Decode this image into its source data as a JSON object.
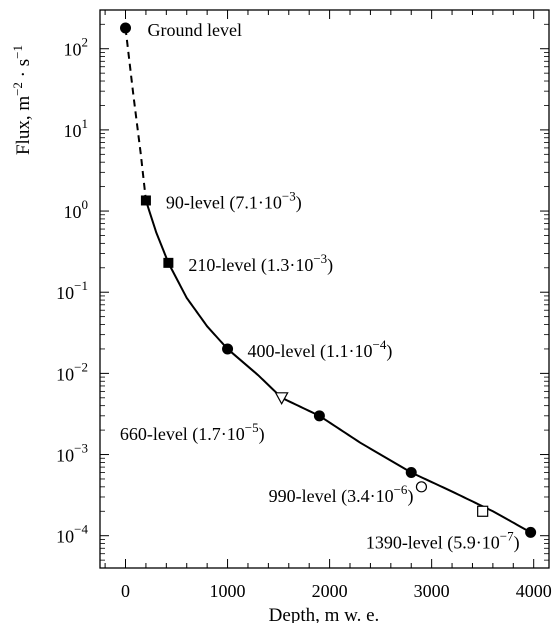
{
  "chart_data": {
    "type": "scatter",
    "title": "",
    "xlabel": "Depth, m w. e.",
    "ylabel": "Flux, m−2 · s−1",
    "xlim": [
      -250,
      4150
    ],
    "ylim": [
      4e-05,
      300
    ],
    "yscale": "log",
    "x_ticks": [
      0,
      1000,
      2000,
      3000,
      4000
    ],
    "x_tick_labels": [
      "0",
      "1000",
      "2000",
      "3000",
      "4000"
    ],
    "y_ticks": [
      0.0001,
      0.001,
      0.01,
      0.1,
      1,
      10,
      100
    ],
    "y_tick_labels": [
      {
        "base": "10",
        "exp": "−4"
      },
      {
        "base": "10",
        "exp": "−3"
      },
      {
        "base": "10",
        "exp": "−2"
      },
      {
        "base": "10",
        "exp": "−1"
      },
      {
        "base": "10",
        "exp": "0"
      },
      {
        "base": "10",
        "exp": "1"
      },
      {
        "base": "10",
        "exp": "2"
      }
    ],
    "grid": false,
    "points": [
      {
        "x": 0,
        "y": 180,
        "marker": "circle-filled",
        "label": "Ground level"
      },
      {
        "x": 200,
        "y": 1.35,
        "marker": "square-filled",
        "label": "90-level (7.1·10−3)"
      },
      {
        "x": 420,
        "y": 0.23,
        "marker": "square-filled",
        "label": "210-level (1.3·10−3)"
      },
      {
        "x": 1000,
        "y": 0.02,
        "marker": "circle-filled",
        "label": "400-level (1.1·10−4)"
      },
      {
        "x": 1530,
        "y": 0.005,
        "marker": "triangle-down-open",
        "label": "660-level (1.7·10−5)"
      },
      {
        "x": 1900,
        "y": 0.003,
        "marker": "circle-filled",
        "label": ""
      },
      {
        "x": 2800,
        "y": 0.0006,
        "marker": "circle-filled",
        "label": ""
      },
      {
        "x": 2900,
        "y": 0.0004,
        "marker": "circle-open",
        "label": "990-level (3.4·10−6)"
      },
      {
        "x": 3500,
        "y": 0.0002,
        "marker": "square-open",
        "label": ""
      },
      {
        "x": 3970,
        "y": 0.00011,
        "marker": "circle-filled",
        "label": "1390-level (5.9·10−7)"
      }
    ],
    "annotations": [
      {
        "text": "Ground level",
        "ref_point": 0
      },
      {
        "base": "90-level (7.1·10",
        "exp": "−3",
        "tail": ")",
        "ref_point": 1
      },
      {
        "base": "210-level (1.3·10",
        "exp": "−3",
        "tail": ")",
        "ref_point": 2
      },
      {
        "base": "400-level (1.1·10",
        "exp": "−4",
        "tail": ")",
        "ref_point": 3
      },
      {
        "base": "660-level (1.7·10",
        "exp": "−5",
        "tail": ")",
        "ref_point": 4
      },
      {
        "base": "990-level (3.4·10",
        "exp": "−6",
        "tail": ")",
        "ref_point": 7
      },
      {
        "base": "1390-level (5.9·10",
        "exp": "−7",
        "tail": ")",
        "ref_point": 9
      }
    ],
    "curve_dashed": [
      [
        0,
        180
      ],
      [
        80,
        25
      ],
      [
        150,
        5
      ],
      [
        200,
        1.35
      ]
    ],
    "curve_solid": [
      [
        200,
        1.35
      ],
      [
        300,
        0.55
      ],
      [
        420,
        0.23
      ],
      [
        600,
        0.085
      ],
      [
        800,
        0.038
      ],
      [
        1000,
        0.02
      ],
      [
        1300,
        0.0095
      ],
      [
        1530,
        0.005
      ],
      [
        1900,
        0.003
      ],
      [
        2300,
        0.0014
      ],
      [
        2800,
        0.0006
      ],
      [
        3200,
        0.00035
      ],
      [
        3600,
        0.0002
      ],
      [
        3970,
        0.00011
      ]
    ]
  }
}
